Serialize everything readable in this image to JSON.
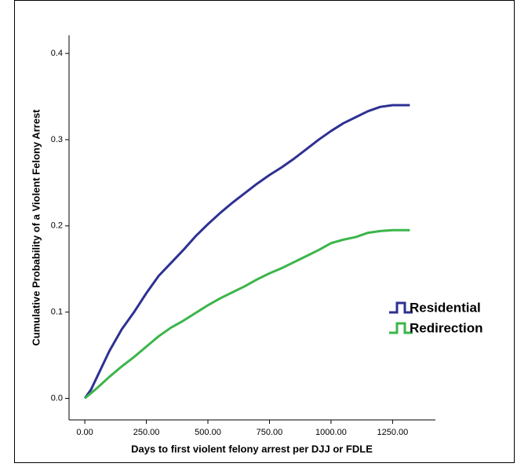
{
  "chart_data": {
    "type": "line",
    "x_label": "Days to first violent felony arrest per DJJ or FDLE",
    "y_label": "Cumulative Probability of a Violent Felony Arrest",
    "x": [
      0,
      25,
      50,
      100,
      150,
      200,
      250,
      300,
      350,
      400,
      450,
      500,
      550,
      600,
      650,
      700,
      750,
      800,
      850,
      900,
      950,
      1000,
      1050,
      1100,
      1150,
      1200,
      1250,
      1320
    ],
    "series": [
      {
        "name": "Residential",
        "color": "#2e3192",
        "values": [
          0,
          0.01,
          0.025,
          0.055,
          0.08,
          0.1,
          0.122,
          0.142,
          0.157,
          0.172,
          0.188,
          0.202,
          0.215,
          0.227,
          0.238,
          0.249,
          0.259,
          0.268,
          0.278,
          0.289,
          0.3,
          0.31,
          0.319,
          0.326,
          0.333,
          0.338,
          0.34,
          0.34
        ]
      },
      {
        "name": "Redirection",
        "color": "#3cb54a",
        "values": [
          0,
          0.006,
          0.012,
          0.025,
          0.037,
          0.048,
          0.06,
          0.072,
          0.082,
          0.09,
          0.099,
          0.108,
          0.116,
          0.123,
          0.13,
          0.138,
          0.145,
          0.151,
          0.158,
          0.165,
          0.172,
          0.18,
          0.184,
          0.187,
          0.192,
          0.194,
          0.195,
          0.195
        ]
      }
    ],
    "xlim": [
      -64,
      1424
    ],
    "ylim": [
      -0.025,
      0.421
    ],
    "xticks": [
      {
        "value": 0,
        "label": "0.00"
      },
      {
        "value": 250,
        "label": "250.00"
      },
      {
        "value": 500,
        "label": "500.00"
      },
      {
        "value": 750,
        "label": "750.00"
      },
      {
        "value": 1000,
        "label": "1000.00"
      },
      {
        "value": 1250,
        "label": "1250.00"
      }
    ],
    "yticks": [
      {
        "value": 0,
        "label": "0.0"
      },
      {
        "value": 0.1,
        "label": "0.1"
      },
      {
        "value": 0.2,
        "label": "0.2"
      },
      {
        "value": 0.3,
        "label": "0.3"
      },
      {
        "value": 0.4,
        "label": "0.4"
      }
    ],
    "grid": false,
    "legend": "right"
  }
}
